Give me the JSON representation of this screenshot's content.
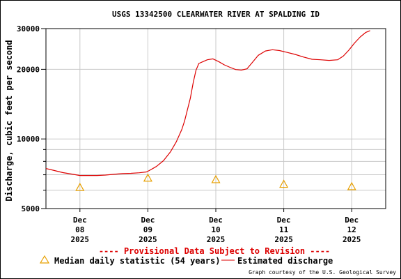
{
  "chart_data": {
    "type": "line",
    "title": "USGS 13342500 CLEARWATER RIVER AT SPALDING ID",
    "ylabel": "Discharge, cubic feet per second",
    "xlabel": "",
    "yscale": "log",
    "ylim": [
      5000,
      30000
    ],
    "y_major_ticks": [
      {
        "value": 5000,
        "label": "5000"
      },
      {
        "value": 10000,
        "label": "10000"
      },
      {
        "value": 20000,
        "label": "20000"
      },
      {
        "value": 30000,
        "label": "30000"
      }
    ],
    "y_minor_gridlines": [
      6000,
      7000,
      8000,
      9000
    ],
    "xlim": [
      "2025-12-07T12:00",
      "2025-12-12T12:00"
    ],
    "x_ticks": [
      {
        "date": "2025-12-08T00:00",
        "lines": [
          "Dec",
          "08",
          "2025"
        ]
      },
      {
        "date": "2025-12-09T00:00",
        "lines": [
          "Dec",
          "09",
          "2025"
        ]
      },
      {
        "date": "2025-12-10T00:00",
        "lines": [
          "Dec",
          "10",
          "2025"
        ]
      },
      {
        "date": "2025-12-11T00:00",
        "lines": [
          "Dec",
          "11",
          "2025"
        ]
      },
      {
        "date": "2025-12-12T00:00",
        "lines": [
          "Dec",
          "12",
          "2025"
        ]
      }
    ],
    "grid": true,
    "series": [
      {
        "name": "Estimated discharge",
        "color": "#dd0000",
        "points": [
          [
            "2025-12-07T12:00",
            7450
          ],
          [
            "2025-12-07T15:00",
            7300
          ],
          [
            "2025-12-07T18:00",
            7150
          ],
          [
            "2025-12-07T21:00",
            7050
          ],
          [
            "2025-12-08T00:00",
            6950
          ],
          [
            "2025-12-08T03:00",
            6950
          ],
          [
            "2025-12-08T06:00",
            6950
          ],
          [
            "2025-12-08T09:00",
            6980
          ],
          [
            "2025-12-08T12:00",
            7030
          ],
          [
            "2025-12-08T15:00",
            7080
          ],
          [
            "2025-12-08T18:00",
            7100
          ],
          [
            "2025-12-08T21:00",
            7140
          ],
          [
            "2025-12-08T23:30",
            7200
          ],
          [
            "2025-12-09T00:30",
            7300
          ],
          [
            "2025-12-09T03:00",
            7600
          ],
          [
            "2025-12-09T05:30",
            8050
          ],
          [
            "2025-12-09T08:00",
            8800
          ],
          [
            "2025-12-09T10:00",
            9700
          ],
          [
            "2025-12-09T12:00",
            11000
          ],
          [
            "2025-12-09T13:00",
            12000
          ],
          [
            "2025-12-09T14:00",
            13400
          ],
          [
            "2025-12-09T15:00",
            15000
          ],
          [
            "2025-12-09T16:00",
            17500
          ],
          [
            "2025-12-09T17:00",
            19800
          ],
          [
            "2025-12-09T18:00",
            21200
          ],
          [
            "2025-12-09T19:30",
            21600
          ],
          [
            "2025-12-09T21:00",
            22000
          ],
          [
            "2025-12-09T23:00",
            22200
          ],
          [
            "2025-12-10T01:00",
            21600
          ],
          [
            "2025-12-10T03:00",
            20900
          ],
          [
            "2025-12-10T05:00",
            20400
          ],
          [
            "2025-12-10T07:00",
            19950
          ],
          [
            "2025-12-10T09:00",
            19850
          ],
          [
            "2025-12-10T11:00",
            20100
          ],
          [
            "2025-12-10T13:00",
            21500
          ],
          [
            "2025-12-10T15:00",
            23000
          ],
          [
            "2025-12-10T17:30",
            24000
          ],
          [
            "2025-12-10T20:00",
            24300
          ],
          [
            "2025-12-10T22:30",
            24100
          ],
          [
            "2025-12-11T01:00",
            23700
          ],
          [
            "2025-12-11T04:00",
            23200
          ],
          [
            "2025-12-11T07:00",
            22600
          ],
          [
            "2025-12-11T10:00",
            22100
          ],
          [
            "2025-12-11T13:00",
            22000
          ],
          [
            "2025-12-11T16:00",
            21850
          ],
          [
            "2025-12-11T19:00",
            22000
          ],
          [
            "2025-12-11T21:00",
            22800
          ],
          [
            "2025-12-11T23:00",
            24200
          ],
          [
            "2025-12-12T01:00",
            26000
          ],
          [
            "2025-12-12T03:00",
            27600
          ],
          [
            "2025-12-12T05:00",
            28900
          ],
          [
            "2025-12-12T06:30",
            29400
          ]
        ]
      }
    ],
    "median_series": {
      "name": "Median daily statistic (54 years)",
      "color": "#e8a000",
      "marker": "triangle",
      "points": [
        [
          "2025-12-08T00:00",
          6150
        ],
        [
          "2025-12-09T00:00",
          6750
        ],
        [
          "2025-12-10T00:00",
          6650
        ],
        [
          "2025-12-11T00:00",
          6350
        ],
        [
          "2025-12-12T00:00",
          6200
        ]
      ]
    },
    "annotations": {
      "provisional": "---- Provisional Data Subject to Revision ----",
      "credit": "Graph courtesy of the U.S. Geological Survey"
    },
    "legend": {
      "placement": "bottom",
      "median_label": "Median daily statistic (54 years)",
      "discharge_label": "Estimated discharge"
    }
  }
}
